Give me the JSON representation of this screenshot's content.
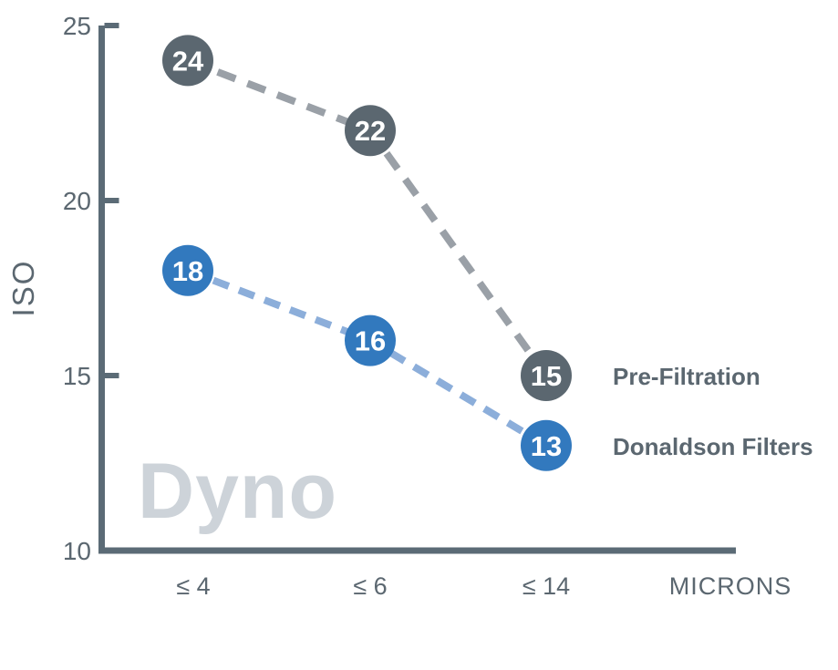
{
  "watermark": "Dyno",
  "colors": {
    "background": "#ffffff",
    "axis": "#5b6b76",
    "tick_text": "#5b6770",
    "legend_text": "#5b6770",
    "watermark": "#cdd3d9",
    "marker_value_text": "#ffffff"
  },
  "chart_data": {
    "type": "line",
    "title": "",
    "xlabel": "MICRONS",
    "ylabel": "ISO",
    "categories": [
      "≤ 4",
      "≤ 6",
      "≤ 14"
    ],
    "category_values": [
      4,
      6,
      14
    ],
    "y_ticks_top_down": [
      25,
      20,
      15,
      10
    ],
    "ylim": [
      10,
      25
    ],
    "grid": false,
    "line_style": "dashed",
    "legend_position": "right-of-last-point",
    "series": [
      {
        "name": "Pre-Filtration",
        "values": [
          24,
          22,
          15
        ],
        "marker_color": "#5b6770",
        "line_color": "#9aa0a7"
      },
      {
        "name": "Donaldson Filters",
        "values": [
          18,
          16,
          13
        ],
        "marker_color": "#3279be",
        "line_color": "#8caeda"
      }
    ]
  }
}
